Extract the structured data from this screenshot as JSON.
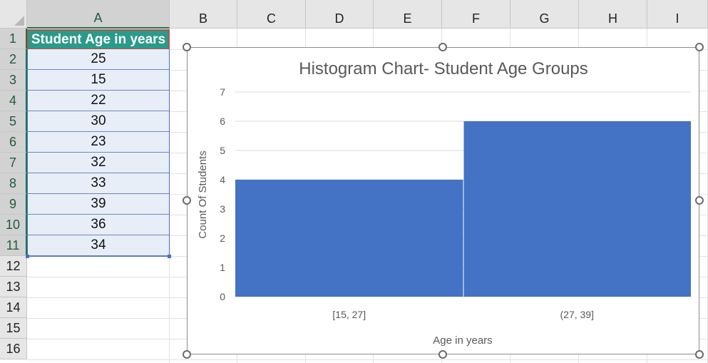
{
  "columns": [
    "A",
    "B",
    "C",
    "D",
    "E",
    "F",
    "G",
    "H",
    "I"
  ],
  "rows": [
    "1",
    "2",
    "3",
    "4",
    "5",
    "6",
    "7",
    "8",
    "9",
    "10",
    "11",
    "12",
    "13",
    "14",
    "15",
    "16"
  ],
  "sheet": {
    "header": "Student Age in years",
    "ages": [
      "25",
      "15",
      "22",
      "30",
      "23",
      "32",
      "33",
      "39",
      "36",
      "34"
    ]
  },
  "colors": {
    "header_fill": "#2a9a8a",
    "data_fill": "#e8eef8",
    "bar_fill": "#4472c4",
    "selection": "#4472c4"
  },
  "chart_data": {
    "type": "bar",
    "title": "Histogram Chart- Student Age Groups",
    "xlabel": "Age in years",
    "ylabel": "Count Of Students",
    "categories": [
      "[15, 27]",
      "(27, 39]"
    ],
    "values": [
      4,
      6
    ],
    "ylim": [
      0,
      7
    ],
    "yticks": [
      "0",
      "1",
      "2",
      "3",
      "4",
      "5",
      "6",
      "7"
    ],
    "grid": true
  }
}
